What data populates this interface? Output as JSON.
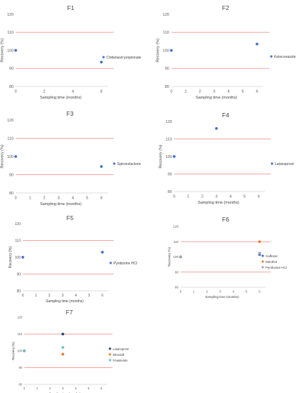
{
  "charts": [
    {
      "title": "F1",
      "xlabel": "Sampling time (months)",
      "ylabel": "Recovery (%)",
      "xticks": [
        "0",
        "2",
        "4",
        "6"
      ],
      "yticks": [
        "80",
        "90",
        "100",
        "110",
        "120"
      ],
      "legend": [
        {
          "label": "Clobetasol propionate",
          "color": "#4472c4"
        }
      ]
    },
    {
      "title": "F2",
      "xlabel": "Sampling time (months)",
      "ylabel": "Recovery (%)",
      "xticks": [
        "0",
        "1",
        "2",
        "3",
        "4",
        "5",
        "6"
      ],
      "yticks": [
        "80",
        "90",
        "100",
        "110",
        "120"
      ],
      "legend": [
        {
          "label": "Ketoconazole",
          "color": "#4472c4"
        }
      ]
    },
    {
      "title": "F3",
      "xlabel": "Sampling time (months)",
      "ylabel": "Recovery (%)",
      "xticks": [
        "0",
        "1",
        "2",
        "3",
        "4",
        "5",
        "6"
      ],
      "yticks": [
        "80",
        "90",
        "100",
        "110",
        "120"
      ],
      "legend": [
        {
          "label": "Spironolactone",
          "color": "#4472c4"
        }
      ]
    },
    {
      "title": "F4",
      "xlabel": "Sampling time (months)",
      "ylabel": "Recovery (%)",
      "xticks": [
        "0",
        "1",
        "2",
        "3",
        "4",
        "5",
        "6"
      ],
      "yticks": [
        "80",
        "90",
        "100",
        "110",
        "120"
      ],
      "legend": [
        {
          "label": "Latanoprost",
          "color": "#4472c4"
        }
      ]
    },
    {
      "title": "F5",
      "xlabel": "Sampling time (months)",
      "ylabel": "Recovery (%)",
      "xticks": [
        "0",
        "1",
        "2",
        "3",
        "4",
        "5",
        "6"
      ],
      "yticks": [
        "80",
        "90",
        "100",
        "110",
        "120"
      ],
      "legend": [
        {
          "label": "Pyridoxine HCl",
          "color": "#4472c4"
        }
      ]
    },
    {
      "title": "F6",
      "xlabel": "Sampling time (months)",
      "ylabel": "Recovery (%)",
      "xticks": [
        "0",
        "1",
        "2",
        "3",
        "4",
        "5",
        "6"
      ],
      "yticks": [
        "80",
        "90",
        "100",
        "110",
        "120"
      ],
      "legend": [
        {
          "label": "Caffeine",
          "color": "#4472c4"
        },
        {
          "label": "Menthol",
          "color": "#ed7d31"
        },
        {
          "label": "Pyridoxine HCl",
          "color": "#a5a5a5"
        }
      ]
    },
    {
      "title": "F7",
      "xlabel": "Sampling time (months)",
      "ylabel": "Recovery (%)",
      "xticks": [
        "0",
        "1",
        "2",
        "3",
        "4",
        "5",
        "6"
      ],
      "yticks": [
        "80",
        "90",
        "100",
        "110",
        "120"
      ],
      "legend": [
        {
          "label": "Latanoprost",
          "color": "#264478"
        },
        {
          "label": "Minoxidil",
          "color": "#ed7d31"
        },
        {
          "label": "Finasteride",
          "color": "#70c0c0"
        }
      ]
    }
  ],
  "chart_data": [
    {
      "type": "scatter",
      "title": "F1",
      "xlabel": "Sampling time (months)",
      "ylabel": "Recovery (%)",
      "xlim": [
        0,
        7
      ],
      "ylim": [
        80,
        120
      ],
      "grid": false,
      "legend_position": "right",
      "reference_lines": [
        90,
        110
      ],
      "reference_line_color": "#f4a6a0",
      "series": [
        {
          "name": "Clobetasol propionate",
          "color": "#4472c4",
          "points": [
            {
              "x": 0,
              "y": 100
            },
            {
              "x": 6,
              "y": 93.5
            }
          ]
        }
      ]
    },
    {
      "type": "scatter",
      "title": "F2",
      "xlabel": "Sampling time (months)",
      "ylabel": "Recovery (%)",
      "xlim": [
        0,
        7
      ],
      "ylim": [
        80,
        120
      ],
      "grid": false,
      "legend_position": "right",
      "reference_lines": [
        90,
        110
      ],
      "reference_line_color": "#f4a6a0",
      "series": [
        {
          "name": "Ketoconazole",
          "color": "#4472c4",
          "points": [
            {
              "x": 0,
              "y": 100
            },
            {
              "x": 6,
              "y": 103.5
            }
          ]
        }
      ]
    },
    {
      "type": "scatter",
      "title": "F3",
      "xlabel": "Sampling time (months)",
      "ylabel": "Recovery (%)",
      "xlim": [
        0,
        7
      ],
      "ylim": [
        80,
        120
      ],
      "grid": false,
      "legend_position": "right",
      "reference_lines": [
        90,
        110
      ],
      "reference_line_color": "#f4a6a0",
      "series": [
        {
          "name": "Spironolactone",
          "color": "#4472c4",
          "points": [
            {
              "x": 0,
              "y": 100
            },
            {
              "x": 6,
              "y": 94.5
            }
          ]
        }
      ]
    },
    {
      "type": "scatter",
      "title": "F4",
      "xlabel": "Sampling time (months)",
      "ylabel": "Recovery (%)",
      "xlim": [
        0,
        7
      ],
      "ylim": [
        80,
        120
      ],
      "grid": false,
      "legend_position": "right",
      "reference_lines": [
        90,
        110
      ],
      "reference_line_color": "#f4a6a0",
      "series": [
        {
          "name": "Latanoprost",
          "color": "#4472c4",
          "points": [
            {
              "x": 0,
              "y": 100
            },
            {
              "x": 3,
              "y": 116
            }
          ]
        }
      ]
    },
    {
      "type": "scatter",
      "title": "F5",
      "xlabel": "Sampling time (months)",
      "ylabel": "Recovery (%)",
      "xlim": [
        0,
        7
      ],
      "ylim": [
        80,
        120
      ],
      "grid": false,
      "legend_position": "right",
      "reference_lines": [
        90,
        110
      ],
      "reference_line_color": "#f4a6a0",
      "series": [
        {
          "name": "Pyridoxine HCl",
          "color": "#4472c4",
          "points": [
            {
              "x": 0,
              "y": 100
            },
            {
              "x": 6,
              "y": 103
            }
          ]
        }
      ]
    },
    {
      "type": "scatter",
      "title": "F6",
      "xlabel": "Sampling time (months)",
      "ylabel": "Recovery (%)",
      "xlim": [
        0,
        7
      ],
      "ylim": [
        80,
        120
      ],
      "grid": false,
      "legend_position": "right",
      "reference_lines": [
        90,
        110
      ],
      "reference_line_color": "#f4a6a0",
      "series": [
        {
          "name": "Caffeine",
          "color": "#4472c4",
          "points": [
            {
              "x": 0,
              "y": 100
            },
            {
              "x": 6,
              "y": 101.5
            }
          ]
        },
        {
          "name": "Menthol",
          "color": "#ed7d31",
          "points": [
            {
              "x": 0,
              "y": 100
            },
            {
              "x": 6,
              "y": 110
            }
          ]
        },
        {
          "name": "Pyridoxine HCl",
          "color": "#a5a5a5",
          "points": [
            {
              "x": 0,
              "y": 100
            },
            {
              "x": 6,
              "y": 102.5
            }
          ]
        }
      ]
    },
    {
      "type": "scatter",
      "title": "F7",
      "xlabel": "Sampling time (months)",
      "ylabel": "Recovery (%)",
      "xlim": [
        0,
        7
      ],
      "ylim": [
        80,
        120
      ],
      "grid": false,
      "legend_position": "right",
      "reference_lines": [
        90,
        110
      ],
      "reference_line_color": "#f4a6a0",
      "series": [
        {
          "name": "Latanoprost",
          "color": "#264478",
          "points": [
            {
              "x": 0,
              "y": 100
            },
            {
              "x": 3,
              "y": 110
            }
          ]
        },
        {
          "name": "Minoxidil",
          "color": "#ed7d31",
          "points": [
            {
              "x": 0,
              "y": 100
            },
            {
              "x": 3,
              "y": 98
            }
          ]
        },
        {
          "name": "Finasteride",
          "color": "#70c0c0",
          "points": [
            {
              "x": 0,
              "y": 100
            },
            {
              "x": 3,
              "y": 102
            }
          ]
        }
      ]
    }
  ]
}
